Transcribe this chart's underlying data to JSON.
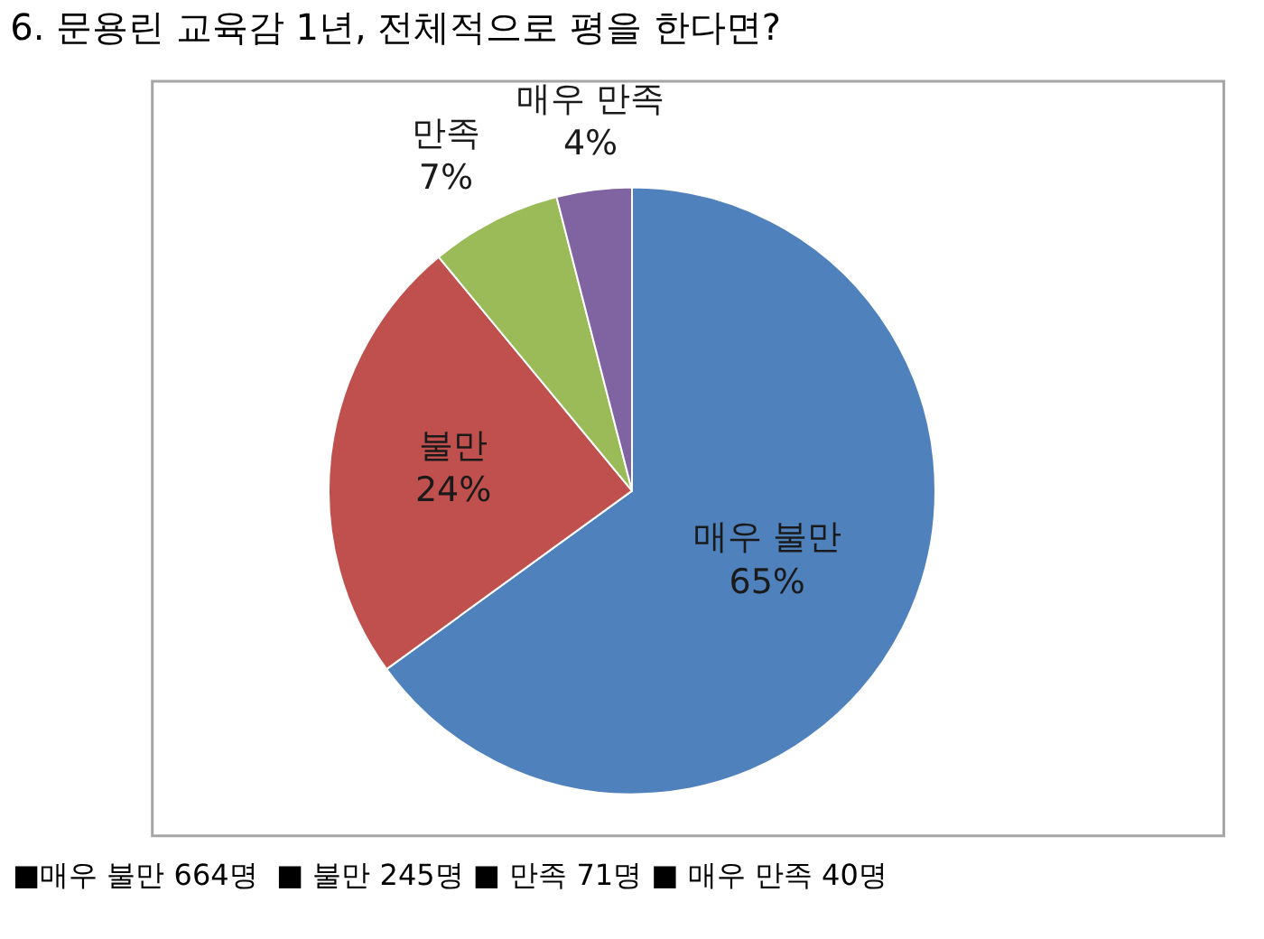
{
  "chart_data": {
    "type": "pie",
    "title": "6. 문용린 교육감 1년, 전체적으로 평을 한다면?",
    "categories": [
      "매우 불만",
      "불만",
      "만족",
      "매우 만족"
    ],
    "values": [
      65,
      24,
      7,
      4
    ],
    "value_labels": [
      "65%",
      "24%",
      "7%",
      "4%"
    ],
    "colors": [
      "#4f81bd",
      "#c0504d",
      "#9bbb59",
      "#8064a2"
    ],
    "annotations": [
      "■매우 불만 664명  ■ 불만 245명 ■ 만족 71명 ■ 매우 만족 40명"
    ]
  }
}
